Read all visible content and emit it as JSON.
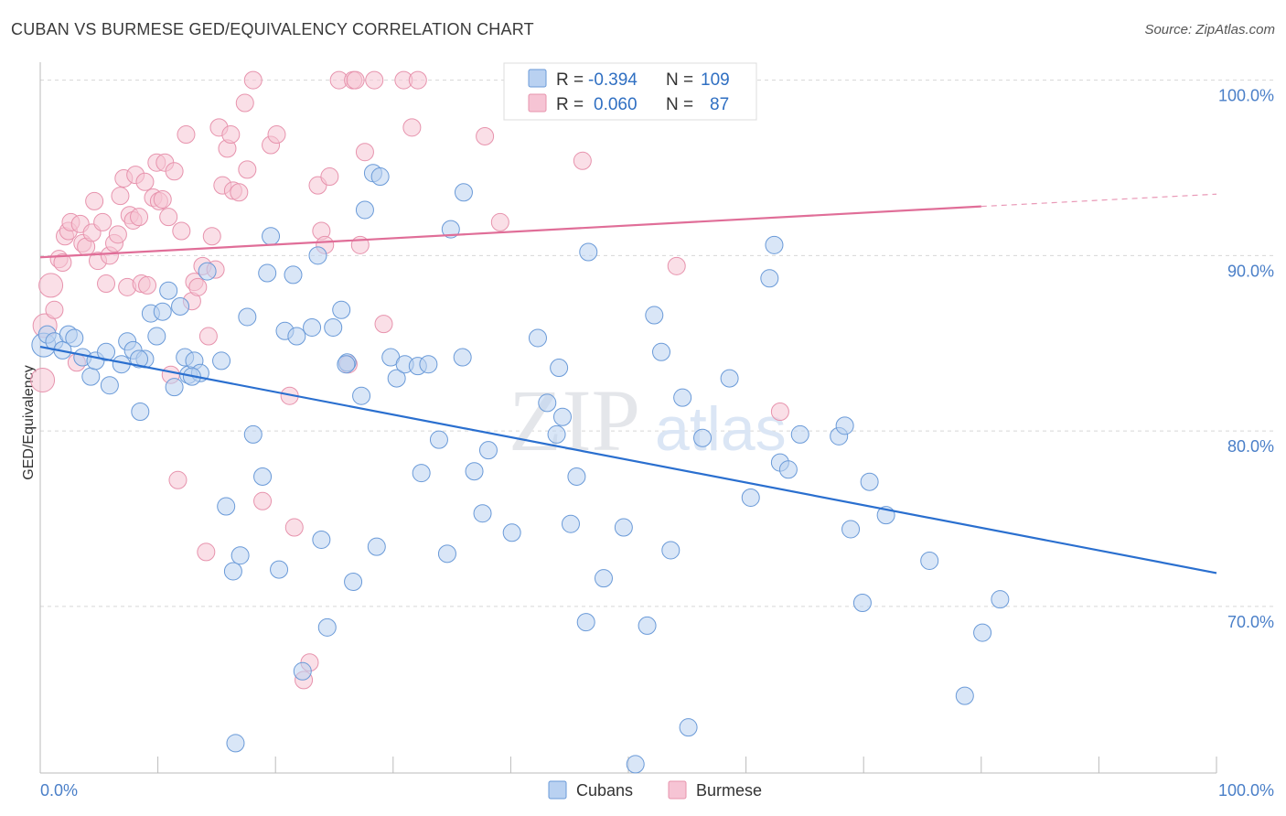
{
  "title": "CUBAN VS BURMESE GED/EQUIVALENCY CORRELATION CHART",
  "source": "Source: ZipAtlas.com",
  "watermark": {
    "zip": "ZIP",
    "atlas": "atlas"
  },
  "colors": {
    "cubans_fill": "#b9d1f1",
    "cubans_stroke": "#6a9ad8",
    "cubans_line": "#2a6fcf",
    "burmese_fill": "#f6c4d4",
    "burmese_stroke": "#e793ad",
    "burmese_line": "#e06e98",
    "tick_label": "#4a7fc8",
    "grid": "#d8d8d8"
  },
  "legend_top": {
    "rows": [
      {
        "series": "Cubans",
        "r_label": "R =",
        "r_value": "-0.394",
        "n_label": "N =",
        "n_value": "109"
      },
      {
        "series": "Burmese",
        "r_label": "R =",
        "r_value": "0.060",
        "n_label": "N =",
        "n_value": "87"
      }
    ]
  },
  "legend_bottom": [
    "Cubans",
    "Burmese"
  ],
  "chart_data": {
    "type": "scatter",
    "title": "CUBAN VS BURMESE GED/EQUIVALENCY CORRELATION CHART",
    "xlabel": "",
    "ylabel": "GED/Equivalency",
    "xlim": [
      0,
      100
    ],
    "ylim": [
      60.5,
      100.5
    ],
    "x_tick_labels": [
      "0.0%",
      "100.0%"
    ],
    "y_tick_labels": [
      "70.0%",
      "80.0%",
      "90.0%",
      "100.0%"
    ],
    "y_ticks": [
      70,
      80,
      90,
      100
    ],
    "grid": true,
    "legend_placement": "top-center",
    "series": [
      {
        "name": "Cubans",
        "r": -0.394,
        "n": 109,
        "trend": {
          "x": [
            0,
            100
          ],
          "y": [
            84.8,
            71.9
          ]
        },
        "points": [
          [
            0.3,
            84.9
          ],
          [
            0.6,
            85.5
          ],
          [
            1.2,
            85.1
          ],
          [
            1.9,
            84.6
          ],
          [
            2.4,
            85.5
          ],
          [
            2.9,
            85.3
          ],
          [
            3.6,
            84.2
          ],
          [
            4.3,
            83.1
          ],
          [
            4.7,
            84.0
          ],
          [
            5.6,
            84.5
          ],
          [
            5.9,
            82.6
          ],
          [
            6.9,
            83.8
          ],
          [
            7.4,
            85.1
          ],
          [
            7.9,
            84.6
          ],
          [
            8.5,
            81.1
          ],
          [
            8.9,
            84.1
          ],
          [
            9.4,
            86.7
          ],
          [
            9.9,
            85.4
          ],
          [
            10.4,
            86.8
          ],
          [
            10.9,
            88.0
          ],
          [
            11.4,
            82.5
          ],
          [
            11.9,
            87.1
          ],
          [
            12.3,
            84.2
          ],
          [
            12.6,
            83.2
          ],
          [
            13.1,
            84.0
          ],
          [
            13.6,
            83.3
          ],
          [
            14.2,
            89.1
          ],
          [
            15.4,
            84.0
          ],
          [
            15.8,
            75.7
          ],
          [
            16.4,
            72.0
          ],
          [
            16.6,
            62.2
          ],
          [
            17.0,
            72.9
          ],
          [
            17.6,
            86.5
          ],
          [
            18.1,
            79.8
          ],
          [
            18.9,
            77.4
          ],
          [
            19.3,
            89.0
          ],
          [
            19.6,
            91.1
          ],
          [
            20.3,
            72.1
          ],
          [
            20.8,
            85.7
          ],
          [
            21.5,
            88.9
          ],
          [
            21.8,
            85.4
          ],
          [
            22.3,
            66.3
          ],
          [
            23.1,
            85.9
          ],
          [
            23.6,
            90.0
          ],
          [
            23.9,
            73.8
          ],
          [
            24.4,
            68.8
          ],
          [
            24.9,
            85.9
          ],
          [
            25.6,
            86.9
          ],
          [
            26.1,
            83.9
          ],
          [
            26.6,
            71.4
          ],
          [
            27.3,
            82.0
          ],
          [
            27.6,
            92.6
          ],
          [
            28.3,
            94.7
          ],
          [
            28.9,
            94.5
          ],
          [
            28.6,
            73.4
          ],
          [
            29.8,
            84.2
          ],
          [
            30.3,
            83.0
          ],
          [
            31.0,
            83.8
          ],
          [
            32.1,
            83.7
          ],
          [
            32.4,
            77.6
          ],
          [
            33.0,
            83.8
          ],
          [
            33.9,
            79.5
          ],
          [
            34.6,
            73.0
          ],
          [
            34.9,
            91.5
          ],
          [
            35.9,
            84.2
          ],
          [
            36.0,
            93.6
          ],
          [
            36.9,
            77.7
          ],
          [
            37.6,
            75.3
          ],
          [
            38.1,
            78.9
          ],
          [
            40.1,
            74.2
          ],
          [
            42.3,
            85.3
          ],
          [
            43.1,
            81.6
          ],
          [
            43.9,
            79.8
          ],
          [
            44.1,
            83.6
          ],
          [
            44.4,
            80.8
          ],
          [
            45.1,
            74.7
          ],
          [
            45.6,
            77.4
          ],
          [
            46.4,
            69.1
          ],
          [
            46.6,
            90.2
          ],
          [
            47.9,
            71.6
          ],
          [
            49.6,
            74.5
          ],
          [
            50.6,
            61.0
          ],
          [
            51.6,
            68.9
          ],
          [
            52.2,
            86.6
          ],
          [
            52.8,
            84.5
          ],
          [
            53.6,
            73.2
          ],
          [
            54.6,
            81.9
          ],
          [
            55.1,
            63.1
          ],
          [
            56.3,
            79.6
          ],
          [
            58.6,
            83.0
          ],
          [
            60.4,
            76.2
          ],
          [
            62.0,
            88.7
          ],
          [
            62.4,
            90.6
          ],
          [
            62.9,
            78.2
          ],
          [
            63.6,
            77.8
          ],
          [
            64.6,
            79.8
          ],
          [
            67.9,
            79.7
          ],
          [
            68.4,
            80.3
          ],
          [
            68.9,
            74.4
          ],
          [
            69.9,
            70.2
          ],
          [
            70.5,
            77.1
          ],
          [
            71.9,
            75.2
          ],
          [
            75.6,
            72.6
          ],
          [
            78.6,
            64.9
          ],
          [
            80.1,
            68.5
          ],
          [
            81.6,
            70.4
          ],
          [
            8.4,
            84.1
          ],
          [
            12.9,
            83.1
          ],
          [
            26.0,
            83.8
          ]
        ]
      },
      {
        "name": "Burmese",
        "r": 0.06,
        "n": 87,
        "trend": {
          "x": [
            0,
            80
          ],
          "y": [
            89.9,
            92.8
          ],
          "dashed_to": {
            "x": 100,
            "y": 93.5
          }
        },
        "points": [
          [
            0.2,
            82.9
          ],
          [
            0.4,
            86.0
          ],
          [
            0.9,
            88.3
          ],
          [
            1.2,
            86.9
          ],
          [
            1.6,
            89.8
          ],
          [
            1.9,
            89.6
          ],
          [
            2.1,
            91.1
          ],
          [
            2.4,
            91.4
          ],
          [
            2.6,
            91.9
          ],
          [
            3.1,
            83.9
          ],
          [
            3.4,
            91.8
          ],
          [
            3.6,
            90.7
          ],
          [
            3.9,
            90.5
          ],
          [
            4.4,
            91.3
          ],
          [
            4.6,
            93.1
          ],
          [
            4.9,
            89.7
          ],
          [
            5.3,
            91.9
          ],
          [
            5.6,
            88.4
          ],
          [
            5.9,
            90.0
          ],
          [
            6.3,
            90.7
          ],
          [
            6.6,
            91.2
          ],
          [
            6.8,
            93.4
          ],
          [
            7.1,
            94.4
          ],
          [
            7.4,
            88.2
          ],
          [
            7.6,
            92.3
          ],
          [
            7.9,
            92.0
          ],
          [
            8.1,
            94.6
          ],
          [
            8.4,
            92.2
          ],
          [
            8.6,
            88.4
          ],
          [
            8.9,
            94.2
          ],
          [
            9.1,
            88.3
          ],
          [
            9.6,
            93.3
          ],
          [
            9.9,
            95.3
          ],
          [
            10.1,
            93.1
          ],
          [
            10.4,
            93.2
          ],
          [
            10.6,
            95.3
          ],
          [
            10.9,
            92.2
          ],
          [
            11.1,
            83.2
          ],
          [
            11.4,
            94.8
          ],
          [
            11.7,
            77.2
          ],
          [
            12.0,
            91.4
          ],
          [
            12.4,
            96.9
          ],
          [
            12.9,
            87.4
          ],
          [
            13.1,
            88.5
          ],
          [
            13.4,
            88.2
          ],
          [
            13.8,
            89.4
          ],
          [
            14.1,
            73.1
          ],
          [
            14.3,
            85.4
          ],
          [
            14.6,
            91.1
          ],
          [
            14.9,
            89.2
          ],
          [
            15.2,
            97.3
          ],
          [
            15.5,
            94.0
          ],
          [
            15.9,
            96.1
          ],
          [
            16.2,
            96.9
          ],
          [
            16.4,
            93.7
          ],
          [
            16.9,
            93.6
          ],
          [
            17.4,
            98.7
          ],
          [
            17.6,
            94.9
          ],
          [
            18.1,
            100.0
          ],
          [
            18.9,
            76.0
          ],
          [
            19.6,
            96.3
          ],
          [
            20.1,
            96.9
          ],
          [
            21.2,
            82.0
          ],
          [
            21.6,
            74.5
          ],
          [
            22.4,
            65.8
          ],
          [
            22.9,
            66.8
          ],
          [
            23.6,
            94.0
          ],
          [
            23.9,
            91.4
          ],
          [
            24.2,
            90.6
          ],
          [
            24.6,
            94.5
          ],
          [
            25.4,
            100.0
          ],
          [
            26.2,
            83.8
          ],
          [
            26.6,
            100.0
          ],
          [
            26.8,
            100.0
          ],
          [
            27.2,
            90.6
          ],
          [
            27.6,
            95.9
          ],
          [
            28.4,
            100.0
          ],
          [
            29.2,
            86.1
          ],
          [
            30.9,
            100.0
          ],
          [
            31.6,
            97.3
          ],
          [
            32.1,
            100.0
          ],
          [
            37.8,
            96.8
          ],
          [
            39.1,
            91.9
          ],
          [
            42.9,
            99.7
          ],
          [
            46.1,
            95.4
          ],
          [
            54.1,
            89.4
          ],
          [
            62.9,
            81.1
          ]
        ]
      }
    ]
  }
}
